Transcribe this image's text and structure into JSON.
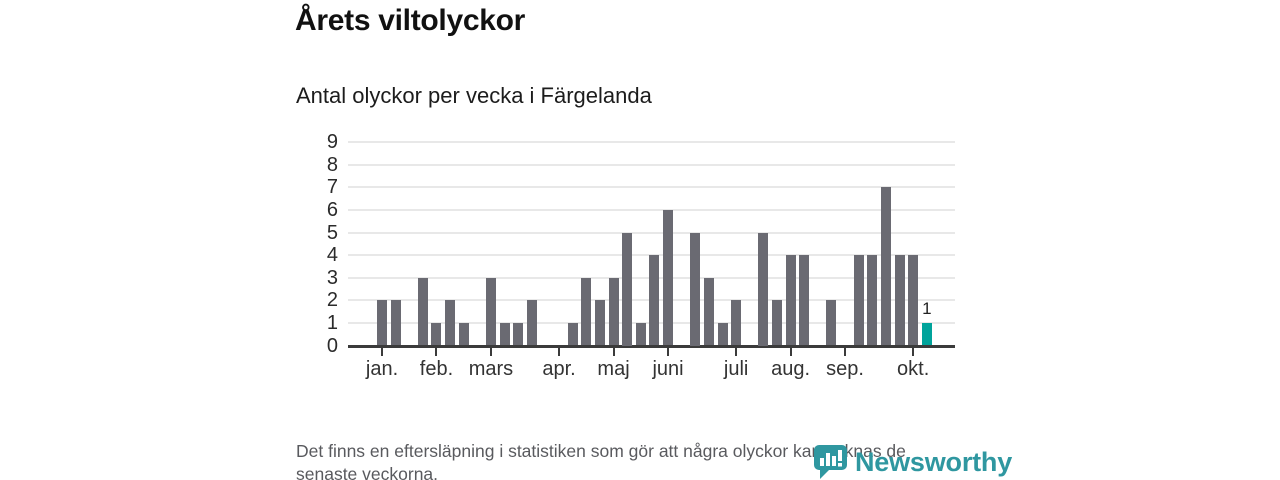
{
  "title": "Årets viltolyckor",
  "subtitle": "Antal olyckor per vecka i Färgelanda",
  "footnote": {
    "lines": [
      "Det finns en eftersläpning i statistiken som gör att några olyckor kan saknas de",
      "senaste veckorna."
    ]
  },
  "brand": {
    "name": "Newsworthy",
    "color": "#2f97a0",
    "icon": "newsworthy-speech-bubble-barchart-icon"
  },
  "colors": {
    "bar": "#6a6a72",
    "highlight": "#00a39b",
    "grid": "#e8e8e8",
    "axis": "#3b3b3b",
    "tick_text": "#2b2b2b",
    "month_text": "#333333"
  },
  "chart_data": {
    "type": "bar",
    "title": "Årets viltolyckor",
    "subtitle": "Antal olyckor per vecka i Färgelanda",
    "x_unit": "vecka (week of year)",
    "ylabel": "Antal olyckor",
    "ylim": [
      0,
      9
    ],
    "yticks": [
      0,
      1,
      2,
      3,
      4,
      5,
      6,
      7,
      8,
      9
    ],
    "grid": true,
    "values": [
      2,
      2,
      0,
      3,
      1,
      2,
      1,
      0,
      3,
      1,
      1,
      2,
      0,
      0,
      1,
      3,
      2,
      3,
      5,
      1,
      4,
      6,
      0,
      5,
      3,
      1,
      2,
      0,
      5,
      2,
      4,
      4,
      0,
      2,
      0,
      4,
      4,
      7,
      4,
      4,
      1
    ],
    "highlight_index": 40,
    "highlight_label": "1",
    "months": [
      {
        "label": "jan.",
        "week": 0
      },
      {
        "label": "feb.",
        "week": 4
      },
      {
        "label": "mars",
        "week": 8
      },
      {
        "label": "apr.",
        "week": 13
      },
      {
        "label": "maj",
        "week": 17
      },
      {
        "label": "juni",
        "week": 21
      },
      {
        "label": "juli",
        "week": 26
      },
      {
        "label": "aug.",
        "week": 30
      },
      {
        "label": "sep.",
        "week": 34
      },
      {
        "label": "okt.",
        "week": 39
      }
    ]
  }
}
